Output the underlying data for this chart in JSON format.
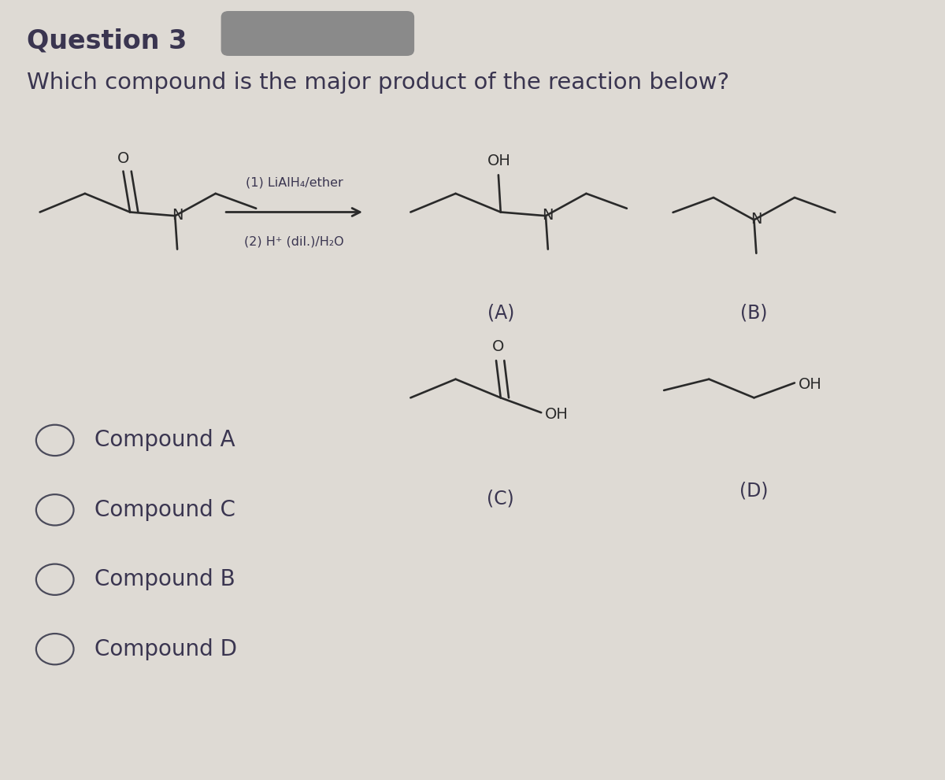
{
  "title": "Question 3",
  "question": "Which compound is the major product of the reaction below?",
  "background_color": "#dedad4",
  "text_color": "#3a3550",
  "title_fontsize": 24,
  "question_fontsize": 21,
  "answer_fontsize": 20,
  "label_fontsize": 17,
  "reagent1": "(1) LiAlH₄/ether",
  "reagent2": "(2) H⁺ (dil.)/H₂O",
  "options": [
    "Compound A",
    "Compound C",
    "Compound B",
    "Compound D"
  ],
  "blot_color": "#8a8a8a",
  "bond_color": "#2a2a2a",
  "red_color": "#c0392b",
  "blue_color": "#2a2a7a"
}
